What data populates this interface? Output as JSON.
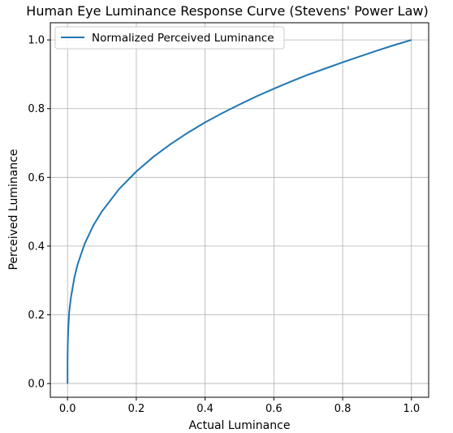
{
  "chart_data": {
    "type": "line",
    "title": "Human Eye Luminance Response Curve (Stevens' Power Law)",
    "xlabel": "Actual Luminance",
    "ylabel": "Perceived Luminance",
    "xlim": [
      -0.05,
      1.05
    ],
    "ylim": [
      -0.04,
      1.05
    ],
    "xticks": [
      0.0,
      0.2,
      0.4,
      0.6,
      0.8,
      1.0
    ],
    "yticks": [
      0.0,
      0.2,
      0.4,
      0.6,
      0.8,
      1.0
    ],
    "xtick_labels": [
      "0.0",
      "0.2",
      "0.4",
      "0.6",
      "0.8",
      "1.0"
    ],
    "ytick_labels": [
      "0.0",
      "0.2",
      "0.4",
      "0.6",
      "0.8",
      "1.0"
    ],
    "grid": true,
    "legend_position": "top-left",
    "series": [
      {
        "name": "Normalized Perceived Luminance",
        "color": "#1f77b4",
        "x": [
          0.0,
          0.0001,
          0.0005,
          0.001,
          0.002,
          0.005,
          0.01,
          0.02,
          0.03,
          0.05,
          0.075,
          0.1,
          0.15,
          0.2,
          0.25,
          0.3,
          0.35,
          0.4,
          0.45,
          0.5,
          0.55,
          0.6,
          0.65,
          0.7,
          0.75,
          0.8,
          0.85,
          0.9,
          0.95,
          1.0
        ],
        "y": [
          0.0,
          0.063,
          0.103,
          0.126,
          0.155,
          0.209,
          0.251,
          0.309,
          0.349,
          0.407,
          0.46,
          0.501,
          0.566,
          0.617,
          0.66,
          0.697,
          0.73,
          0.76,
          0.787,
          0.812,
          0.836,
          0.858,
          0.879,
          0.899,
          0.917,
          0.935,
          0.952,
          0.969,
          0.985,
          1.0
        ]
      }
    ]
  }
}
